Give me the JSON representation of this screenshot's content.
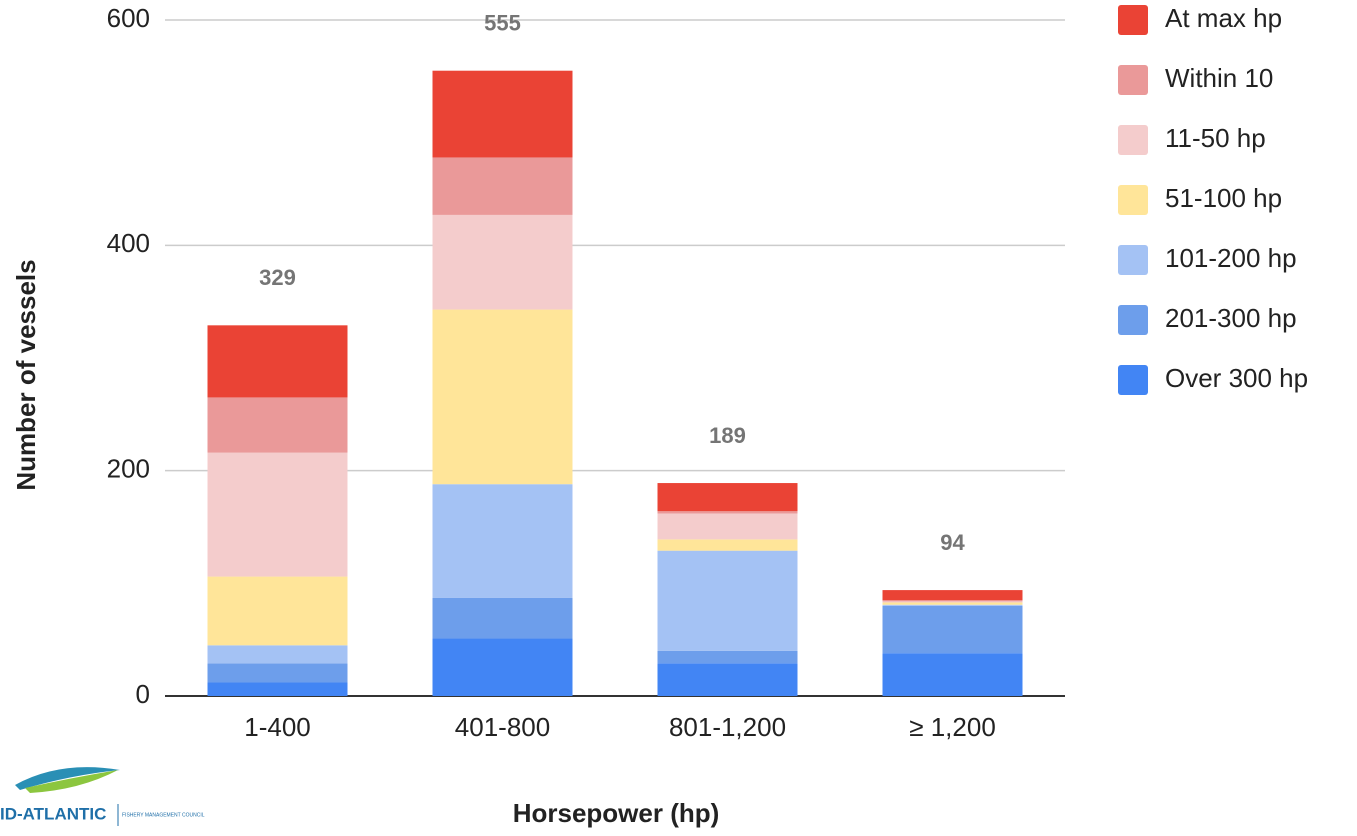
{
  "chart_data": {
    "type": "stacked_bar",
    "x_label": "Horsepower (hp)",
    "y_label": "Number of vessels",
    "categories": [
      "1-400",
      "401-800",
      "801-1,200",
      "≥ 1,200"
    ],
    "series": [
      {
        "name": "Over 300 hp",
        "color": "#4285f4",
        "values": [
          12,
          51,
          29,
          38
        ]
      },
      {
        "name": "201-300 hp",
        "color": "#6d9eeb",
        "values": [
          17,
          36,
          11,
          42
        ]
      },
      {
        "name": "101-200 hp",
        "color": "#a4c2f4",
        "values": [
          16,
          101,
          89,
          1
        ]
      },
      {
        "name": "51-100 hp",
        "color": "#ffe599",
        "values": [
          61,
          155,
          10,
          2
        ]
      },
      {
        "name": "11-50 hp",
        "color": "#f4cccc",
        "values": [
          110,
          84,
          23,
          1
        ]
      },
      {
        "name": "Within 10",
        "color": "#ea9999",
        "values": [
          49,
          51,
          2,
          1
        ]
      },
      {
        "name": "At max hp",
        "color": "#ea4335",
        "values": [
          64,
          77,
          25,
          9
        ]
      }
    ],
    "totals": [
      329,
      555,
      189,
      94
    ],
    "ylim": [
      0,
      600
    ],
    "yticks": [
      0,
      200,
      400,
      600
    ],
    "grid": true,
    "legend": "right"
  },
  "logo": {
    "text": "ID-ATLANTIC",
    "subtext": "FISHERY MANAGEMENT COUNCIL"
  }
}
